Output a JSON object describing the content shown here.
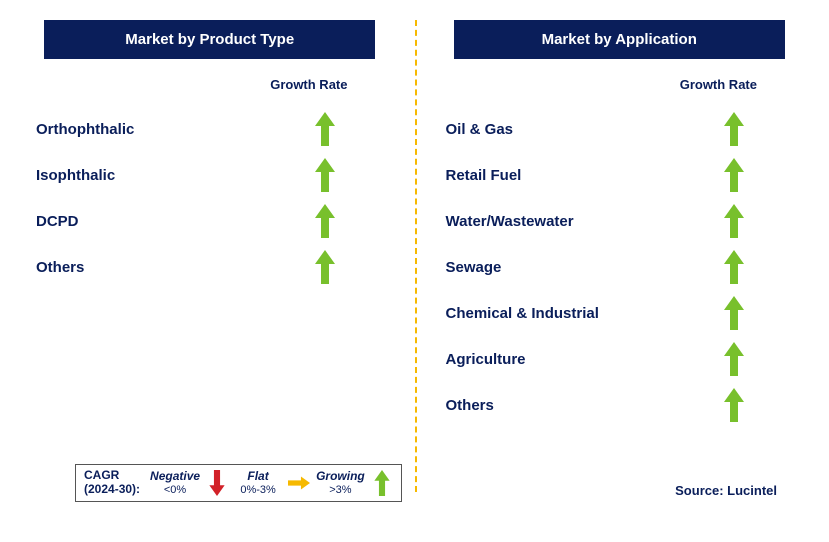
{
  "colors": {
    "navy": "#0a1e5a",
    "green": "#78c02c",
    "red": "#d22128",
    "yellow": "#f6b900",
    "dashed": "#f6b900",
    "text": "#0a1e5a"
  },
  "left_panel": {
    "title": "Market by Product Type",
    "growth_label": "Growth Rate",
    "items": [
      {
        "label": "Orthophthalic",
        "trend": "growing"
      },
      {
        "label": "Isophthalic",
        "trend": "growing"
      },
      {
        "label": "DCPD",
        "trend": "growing"
      },
      {
        "label": "Others",
        "trend": "growing"
      }
    ]
  },
  "right_panel": {
    "title": "Market by Application",
    "growth_label": "Growth Rate",
    "items": [
      {
        "label": "Oil & Gas",
        "trend": "growing"
      },
      {
        "label": "Retail Fuel",
        "trend": "growing"
      },
      {
        "label": "Water/Wastewater",
        "trend": "growing"
      },
      {
        "label": "Sewage",
        "trend": "growing"
      },
      {
        "label": "Chemical & Industrial",
        "trend": "growing"
      },
      {
        "label": "Agriculture",
        "trend": "growing"
      },
      {
        "label": "Others",
        "trend": "growing"
      }
    ]
  },
  "legend": {
    "cagr_line1": "CAGR",
    "cagr_line2": "(2024-30):",
    "negative_label": "Negative",
    "negative_range": "<0%",
    "flat_label": "Flat",
    "flat_range": "0%-3%",
    "growing_label": "Growing",
    "growing_range": ">3%"
  },
  "source_label": "Source: Lucintel"
}
